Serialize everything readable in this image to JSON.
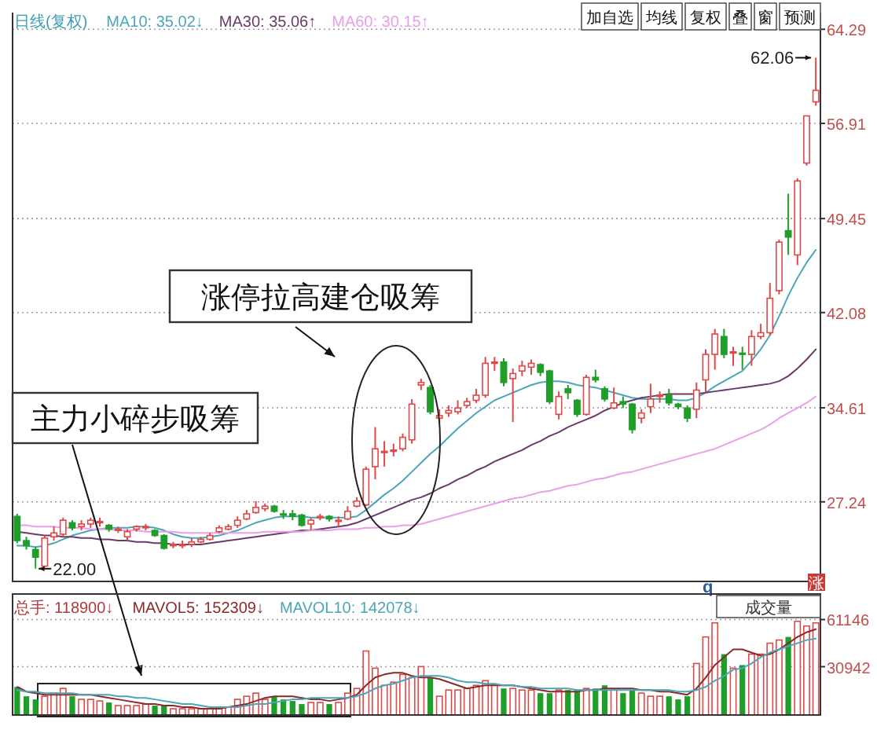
{
  "chart_data": [
    {
      "type": "candlestick",
      "title": "日线(复权)",
      "categories": [
        null,
        null,
        null,
        null,
        null,
        null,
        null,
        null,
        null,
        null,
        null,
        null,
        null,
        null,
        null,
        null,
        null,
        null,
        null,
        null,
        null,
        null,
        null,
        null,
        null,
        null,
        null,
        null,
        null,
        null,
        null,
        null,
        null,
        null,
        null,
        null,
        null,
        null,
        null,
        null,
        null,
        null,
        null,
        null,
        null,
        null,
        null,
        null,
        null,
        null,
        null,
        null,
        null,
        null,
        null,
        null,
        null,
        null,
        null,
        null,
        null,
        null,
        null,
        null,
        null,
        null,
        null,
        null,
        null,
        null,
        null,
        null,
        null,
        null,
        null,
        null,
        null,
        null,
        null,
        null,
        null,
        null,
        null,
        null,
        null,
        null,
        null,
        null
      ],
      "ohlc": [
        [
          26.1,
          26.3,
          24.0,
          24.2
        ],
        [
          24.2,
          24.5,
          23.5,
          23.8
        ],
        [
          23.5,
          23.7,
          22.0,
          22.9
        ],
        [
          22.2,
          24.6,
          22.1,
          24.4
        ],
        [
          24.5,
          25.3,
          24.2,
          24.8
        ],
        [
          24.7,
          26.0,
          24.5,
          25.8
        ],
        [
          25.6,
          25.8,
          25.0,
          25.2
        ],
        [
          25.3,
          25.8,
          25.0,
          25.5
        ],
        [
          25.5,
          26.0,
          25.2,
          25.8
        ],
        [
          25.6,
          26.0,
          25.3,
          25.7
        ],
        [
          25.4,
          25.5,
          24.9,
          25.1
        ],
        [
          25.0,
          25.3,
          24.8,
          25.1
        ],
        [
          24.5,
          25.1,
          24.2,
          24.9
        ],
        [
          25.1,
          25.4,
          24.9,
          25.3
        ],
        [
          25.2,
          25.5,
          25.0,
          25.3
        ],
        [
          25.0,
          25.1,
          24.5,
          24.6
        ],
        [
          24.6,
          24.7,
          23.5,
          23.6
        ],
        [
          23.8,
          24.1,
          23.6,
          23.9
        ],
        [
          23.8,
          24.2,
          23.6,
          23.9
        ],
        [
          23.9,
          24.4,
          23.7,
          24.1
        ],
        [
          24.1,
          24.5,
          24.0,
          24.3
        ],
        [
          24.3,
          24.8,
          24.2,
          24.6
        ],
        [
          24.9,
          25.4,
          24.8,
          25.2
        ],
        [
          25.1,
          25.5,
          25.0,
          25.3
        ],
        [
          25.4,
          26.1,
          25.2,
          25.8
        ],
        [
          25.9,
          26.6,
          25.8,
          26.3
        ],
        [
          26.4,
          27.3,
          26.3,
          26.8
        ],
        [
          26.7,
          27.1,
          26.5,
          26.9
        ],
        [
          26.9,
          27.0,
          26.4,
          26.5
        ],
        [
          26.3,
          26.6,
          25.9,
          26.2
        ],
        [
          26.3,
          26.6,
          25.8,
          26.1
        ],
        [
          26.2,
          26.3,
          25.3,
          25.4
        ],
        [
          25.5,
          26.0,
          25.0,
          25.8
        ],
        [
          26.0,
          26.3,
          25.8,
          26.1
        ],
        [
          26.1,
          26.2,
          25.7,
          25.9
        ],
        [
          25.8,
          26.1,
          25.3,
          25.8
        ],
        [
          25.9,
          26.9,
          25.8,
          26.5
        ],
        [
          26.9,
          27.6,
          26.8,
          27.3
        ],
        [
          27.0,
          30.0,
          26.9,
          29.8
        ],
        [
          30.0,
          33.1,
          29.0,
          31.4
        ],
        [
          31.1,
          32.0,
          30.0,
          31.2
        ],
        [
          31.3,
          31.8,
          30.8,
          31.3
        ],
        [
          31.4,
          32.6,
          31.2,
          32.3
        ],
        [
          32.1,
          35.3,
          31.8,
          34.9
        ],
        [
          36.4,
          36.9,
          36.0,
          36.6
        ],
        [
          36.2,
          36.4,
          34.1,
          34.3
        ],
        [
          33.8,
          34.5,
          33.4,
          34.0
        ],
        [
          34.2,
          34.8,
          33.9,
          34.4
        ],
        [
          34.3,
          35.2,
          34.1,
          34.6
        ],
        [
          34.8,
          35.4,
          34.6,
          35.1
        ],
        [
          35.2,
          36.1,
          35.0,
          35.6
        ],
        [
          35.6,
          38.6,
          35.4,
          38.1
        ],
        [
          38.1,
          38.6,
          37.5,
          38.2
        ],
        [
          38.2,
          38.5,
          36.3,
          36.6
        ],
        [
          36.9,
          37.7,
          33.5,
          37.3
        ],
        [
          37.5,
          38.3,
          37.1,
          37.9
        ],
        [
          37.8,
          38.4,
          37.2,
          38.1
        ],
        [
          38.0,
          38.1,
          37.1,
          37.4
        ],
        [
          37.5,
          37.6,
          34.9,
          35.1
        ],
        [
          34.1,
          35.9,
          33.7,
          35.5
        ],
        [
          36.1,
          36.4,
          35.3,
          35.8
        ],
        [
          35.2,
          35.3,
          33.9,
          34.1
        ],
        [
          34.1,
          37.2,
          34.0,
          37.0
        ],
        [
          37.0,
          37.6,
          36.6,
          36.8
        ],
        [
          36.1,
          36.3,
          35.1,
          35.3
        ],
        [
          34.6,
          36.2,
          34.5,
          35.0
        ],
        [
          35.1,
          35.5,
          34.6,
          34.9
        ],
        [
          34.9,
          35.0,
          32.6,
          32.9
        ],
        [
          33.8,
          34.5,
          33.4,
          34.2
        ],
        [
          34.7,
          36.5,
          34.2,
          35.3
        ],
        [
          35.5,
          35.9,
          35.0,
          35.6
        ],
        [
          35.6,
          36.1,
          34.8,
          35.0
        ],
        [
          34.9,
          35.0,
          34.5,
          34.7
        ],
        [
          34.6,
          34.8,
          33.5,
          33.8
        ],
        [
          34.5,
          36.6,
          33.8,
          36.0
        ],
        [
          36.8,
          39.2,
          35.8,
          38.8
        ],
        [
          38.8,
          40.8,
          37.6,
          40.4
        ],
        [
          40.2,
          40.8,
          38.5,
          38.8
        ],
        [
          38.9,
          39.4,
          37.9,
          39.0
        ],
        [
          38.9,
          39.4,
          37.6,
          38.8
        ],
        [
          38.8,
          40.7,
          37.9,
          40.2
        ],
        [
          40.2,
          41.2,
          40.0,
          40.5
        ],
        [
          40.5,
          44.4,
          40.3,
          43.2
        ],
        [
          43.8,
          47.8,
          43.5,
          47.6
        ],
        [
          48.5,
          51.4,
          46.6,
          48.0
        ],
        [
          46.6,
          52.6,
          45.8,
          52.4
        ],
        [
          53.8,
          57.5,
          53.6,
          57.5
        ],
        [
          58.6,
          62.06,
          58.3,
          59.5
        ]
      ],
      "colors": [
        "#1f9e2a",
        "#1f9e2a",
        "#1f9e2a",
        "#e04848",
        "#e04848",
        "#e04848",
        "#1f9e2a",
        "#e04848",
        "#e04848",
        "#e04848",
        "#1f9e2a",
        "#e04848",
        "#e04848",
        "#e04848",
        "#e04848",
        "#1f9e2a",
        "#1f9e2a",
        "#e04848",
        "#e04848",
        "#e04848",
        "#e04848",
        "#e04848",
        "#e04848",
        "#e04848",
        "#e04848",
        "#e04848",
        "#e04848",
        "#e04848",
        "#1f9e2a",
        "#1f9e2a",
        "#1f9e2a",
        "#1f9e2a",
        "#e04848",
        "#e04848",
        "#1f9e2a",
        "#e04848",
        "#e04848",
        "#e04848",
        "#e04848",
        "#e04848",
        "#e04848",
        "#e04848",
        "#e04848",
        "#e04848",
        "#e04848",
        "#1f9e2a",
        "#e04848",
        "#e04848",
        "#e04848",
        "#e04848",
        "#e04848",
        "#e04848",
        "#e04848",
        "#1f9e2a",
        "#e04848",
        "#e04848",
        "#e04848",
        "#1f9e2a",
        "#1f9e2a",
        "#e04848",
        "#1f9e2a",
        "#1f9e2a",
        "#e04848",
        "#1f9e2a",
        "#1f9e2a",
        "#e04848",
        "#1f9e2a",
        "#1f9e2a",
        "#e04848",
        "#e04848",
        "#e04848",
        "#1f9e2a",
        "#1f9e2a",
        "#1f9e2a",
        "#e04848",
        "#e04848",
        "#e04848",
        "#1f9e2a",
        "#e04848",
        "#1f9e2a",
        "#e04848",
        "#e04848",
        "#e04848",
        "#e04848",
        "#1f9e2a",
        "#e04848",
        "#e04848",
        "#e04848"
      ],
      "series": [
        {
          "type": "line",
          "name": "MA10: 35.02↓",
          "color": "#4aa6b8",
          "values": [
            23.8,
            23.8,
            23.7,
            23.8,
            24.0,
            24.3,
            24.6,
            24.8,
            25.0,
            25.1,
            25.2,
            25.2,
            25.2,
            25.3,
            25.3,
            25.2,
            25.0,
            24.7,
            24.5,
            24.4,
            24.4,
            24.5,
            24.6,
            24.8,
            25.0,
            25.3,
            25.6,
            25.8,
            26.0,
            26.1,
            26.1,
            26.1,
            26.0,
            26.0,
            26.0,
            26.0,
            26.0,
            26.1,
            26.6,
            27.2,
            27.8,
            28.3,
            28.9,
            29.6,
            30.3,
            31.0,
            31.6,
            32.3,
            33.0,
            33.6,
            34.2,
            34.7,
            35.2,
            35.5,
            35.8,
            36.1,
            36.4,
            36.6,
            36.7,
            36.7,
            36.6,
            36.4,
            36.3,
            36.2,
            36.0,
            35.8,
            35.6,
            35.4,
            35.3,
            35.3,
            35.3,
            35.3,
            35.2,
            35.2,
            35.4,
            35.8,
            36.3,
            36.7,
            37.1,
            37.5,
            38.3,
            39.2,
            40.3,
            41.8,
            43.4,
            44.8,
            46.0,
            47.0
          ]
        },
        {
          "type": "line",
          "name": "MA30: 35.06↑",
          "color": "#6a3a6a",
          "values": [
            24.9,
            24.8,
            24.7,
            24.6,
            24.6,
            24.5,
            24.5,
            24.4,
            24.4,
            24.3,
            24.3,
            24.2,
            24.2,
            24.1,
            24.1,
            24.0,
            24.0,
            23.9,
            23.9,
            23.9,
            23.9,
            24.0,
            24.1,
            24.2,
            24.3,
            24.4,
            24.5,
            24.6,
            24.7,
            24.8,
            24.9,
            25.0,
            25.0,
            25.1,
            25.2,
            25.3,
            25.4,
            25.6,
            25.9,
            26.2,
            26.5,
            26.8,
            27.1,
            27.4,
            27.6,
            27.9,
            28.3,
            28.6,
            29.0,
            29.3,
            29.7,
            30.0,
            30.4,
            30.7,
            31.0,
            31.3,
            31.7,
            32.0,
            32.4,
            32.7,
            33.1,
            33.4,
            33.7,
            34.0,
            34.4,
            34.7,
            35.0,
            35.2,
            35.4,
            35.5,
            35.6,
            35.7,
            35.7,
            35.7,
            35.7,
            35.8,
            35.9,
            36.0,
            36.1,
            36.2,
            36.3,
            36.4,
            36.5,
            36.7,
            37.1,
            37.7,
            38.4,
            39.2
          ]
        },
        {
          "type": "line",
          "name": "MA60: 30.15↑",
          "color": "#e8a0e8",
          "values": [
            25.4,
            25.4,
            25.3,
            25.3,
            25.3,
            25.2,
            25.2,
            25.2,
            25.1,
            25.1,
            25.1,
            25.0,
            25.0,
            25.0,
            24.9,
            24.9,
            24.9,
            24.9,
            24.8,
            24.8,
            24.8,
            24.8,
            24.8,
            24.8,
            24.8,
            24.8,
            24.8,
            24.9,
            24.9,
            24.9,
            24.9,
            24.9,
            25.0,
            25.0,
            25.0,
            25.1,
            25.1,
            25.1,
            25.2,
            25.2,
            25.3,
            25.3,
            25.4,
            25.4,
            25.5,
            25.7,
            25.9,
            26.1,
            26.3,
            26.5,
            26.7,
            26.9,
            27.1,
            27.3,
            27.5,
            27.6,
            27.8,
            28.0,
            28.1,
            28.3,
            28.5,
            28.6,
            28.8,
            29.0,
            29.1,
            29.3,
            29.5,
            29.6,
            29.8,
            30.0,
            30.2,
            30.4,
            30.6,
            30.8,
            31.0,
            31.2,
            31.4,
            31.7,
            32.0,
            32.3,
            32.6,
            32.9,
            33.3,
            33.8,
            34.2,
            34.6,
            35.0,
            35.5
          ]
        }
      ],
      "ylim": [
        21.0,
        65.6
      ],
      "yticks": [
        27.24,
        34.61,
        42.08,
        49.45,
        56.91,
        64.29
      ],
      "grid": "y",
      "legend": "top left",
      "tick_labels": "y",
      "annotations": [
        "22.00",
        "62.06",
        "涨停拉高建仓吸筹",
        "主力小碎步吸筹",
        "加自选",
        "均线",
        "复权",
        "叠",
        "窗",
        "预测",
        "q",
        "涨"
      ]
    },
    {
      "type": "bar",
      "title": "总手: 118900↓",
      "categories": [
        null,
        null,
        null,
        null,
        null,
        null,
        null,
        null,
        null,
        null,
        null,
        null,
        null,
        null,
        null,
        null,
        null,
        null,
        null,
        null,
        null,
        null,
        null,
        null,
        null,
        null,
        null,
        null,
        null,
        null,
        null,
        null,
        null,
        null,
        null,
        null,
        null,
        null,
        null,
        null,
        null,
        null,
        null,
        null,
        null,
        null,
        null,
        null,
        null,
        null,
        null,
        null,
        null,
        null,
        null,
        null,
        null,
        null,
        null,
        null,
        null,
        null,
        null,
        null,
        null,
        null,
        null,
        null,
        null,
        null,
        null,
        null,
        null,
        null,
        null,
        null,
        null,
        null,
        null,
        null,
        null,
        null,
        null,
        null,
        null,
        null,
        null,
        null
      ],
      "series": [
        {
          "values": [
            18000,
            12000,
            10000,
            12000,
            14000,
            17000,
            12000,
            10000,
            10000,
            9000,
            8000,
            6000,
            6000,
            6000,
            7000,
            6000,
            6000,
            4000,
            4000,
            4000,
            4000,
            4000,
            4000,
            5000,
            10000,
            12000,
            14000,
            10000,
            12000,
            10000,
            9000,
            7000,
            8000,
            8000,
            7000,
            8000,
            14000,
            17000,
            41000,
            30000,
            19000,
            21000,
            26000,
            24000,
            31000,
            24000,
            12000,
            16000,
            16000,
            17000,
            19000,
            22000,
            19000,
            17000,
            17000,
            16000,
            16000,
            14000,
            14000,
            16000,
            16000,
            16000,
            17000,
            17000,
            19000,
            16000,
            14000,
            16000,
            14000,
            12000,
            12000,
            12000,
            10000,
            12000,
            33000,
            50000,
            59000,
            39000,
            30000,
            32000,
            39000,
            39000,
            46000,
            48000,
            50000,
            60000,
            57000,
            59000
          ],
          "colors": [
            "#1f9e2a",
            "#1f9e2a",
            "#1f9e2a",
            "#e04848",
            "#e04848",
            "#e04848",
            "#1f9e2a",
            "#e04848",
            "#e04848",
            "#e04848",
            "#1f9e2a",
            "#e04848",
            "#e04848",
            "#e04848",
            "#e04848",
            "#1f9e2a",
            "#1f9e2a",
            "#e04848",
            "#e04848",
            "#e04848",
            "#e04848",
            "#e04848",
            "#e04848",
            "#e04848",
            "#e04848",
            "#e04848",
            "#e04848",
            "#e04848",
            "#1f9e2a",
            "#1f9e2a",
            "#1f9e2a",
            "#1f9e2a",
            "#e04848",
            "#e04848",
            "#1f9e2a",
            "#e04848",
            "#e04848",
            "#e04848",
            "#e04848",
            "#e04848",
            "#e04848",
            "#e04848",
            "#e04848",
            "#e04848",
            "#e04848",
            "#1f9e2a",
            "#e04848",
            "#e04848",
            "#e04848",
            "#e04848",
            "#e04848",
            "#e04848",
            "#e04848",
            "#1f9e2a",
            "#e04848",
            "#e04848",
            "#e04848",
            "#1f9e2a",
            "#1f9e2a",
            "#e04848",
            "#1f9e2a",
            "#1f9e2a",
            "#e04848",
            "#1f9e2a",
            "#1f9e2a",
            "#e04848",
            "#1f9e2a",
            "#1f9e2a",
            "#e04848",
            "#e04848",
            "#e04848",
            "#1f9e2a",
            "#1f9e2a",
            "#1f9e2a",
            "#e04848",
            "#e04848",
            "#e04848",
            "#1f9e2a",
            "#e04848",
            "#1f9e2a",
            "#e04848",
            "#e04848",
            "#e04848",
            "#e04848",
            "#1f9e2a",
            "#e04848",
            "#e04848",
            "#e04848"
          ]
        },
        {
          "type": "line",
          "name": "MAVOL5: 152309↓",
          "color": "#8b2a2a",
          "values": [
            18000,
            15000,
            14000,
            13000,
            13000,
            13000,
            13000,
            13000,
            13000,
            12000,
            11000,
            10000,
            9000,
            8000,
            7000,
            7000,
            6000,
            6000,
            5000,
            5000,
            4000,
            4000,
            4000,
            5000,
            6000,
            7000,
            9000,
            11000,
            12000,
            12000,
            12000,
            11000,
            10000,
            10000,
            9000,
            10000,
            11000,
            13000,
            19000,
            24000,
            26000,
            27000,
            27000,
            25000,
            24000,
            24000,
            23000,
            21000,
            19000,
            17000,
            18000,
            19000,
            19000,
            19000,
            19000,
            18000,
            17000,
            16000,
            15000,
            15000,
            15000,
            15000,
            16000,
            16000,
            17000,
            17000,
            17000,
            17000,
            16000,
            16000,
            15000,
            15000,
            14000,
            13000,
            17000,
            24000,
            32000,
            37000,
            42000,
            42000,
            40000,
            38000,
            39000,
            42000,
            46000,
            50000,
            53000,
            55000
          ]
        },
        {
          "type": "line",
          "name": "MAVOL10: 142078↓",
          "color": "#4aa6b8",
          "values": [
            16000,
            15000,
            15000,
            14000,
            14000,
            14000,
            14000,
            13000,
            13000,
            13000,
            13000,
            12000,
            12000,
            11000,
            11000,
            10000,
            9000,
            8000,
            7000,
            7000,
            6000,
            5000,
            5000,
            5000,
            5000,
            6000,
            7000,
            7000,
            8000,
            9000,
            10000,
            10000,
            11000,
            11000,
            11000,
            11000,
            11000,
            12000,
            14000,
            17000,
            19000,
            20000,
            22000,
            24000,
            25000,
            25000,
            25000,
            24000,
            22000,
            21000,
            21000,
            20000,
            20000,
            19000,
            19000,
            18000,
            18000,
            17000,
            17000,
            17000,
            17000,
            16000,
            16000,
            16000,
            16000,
            16000,
            16000,
            16000,
            16000,
            16000,
            16000,
            16000,
            15000,
            15000,
            16000,
            18000,
            22000,
            25000,
            29000,
            30000,
            33000,
            37000,
            40000,
            42000,
            44000,
            46000,
            48000,
            49000
          ]
        }
      ],
      "ylim": [
        0,
        77500
      ],
      "yticks": [
        30942,
        61146
      ],
      "grid": "y",
      "legend": "top left",
      "tick_labels": "y",
      "annotations": [
        "成交量"
      ]
    }
  ]
}
